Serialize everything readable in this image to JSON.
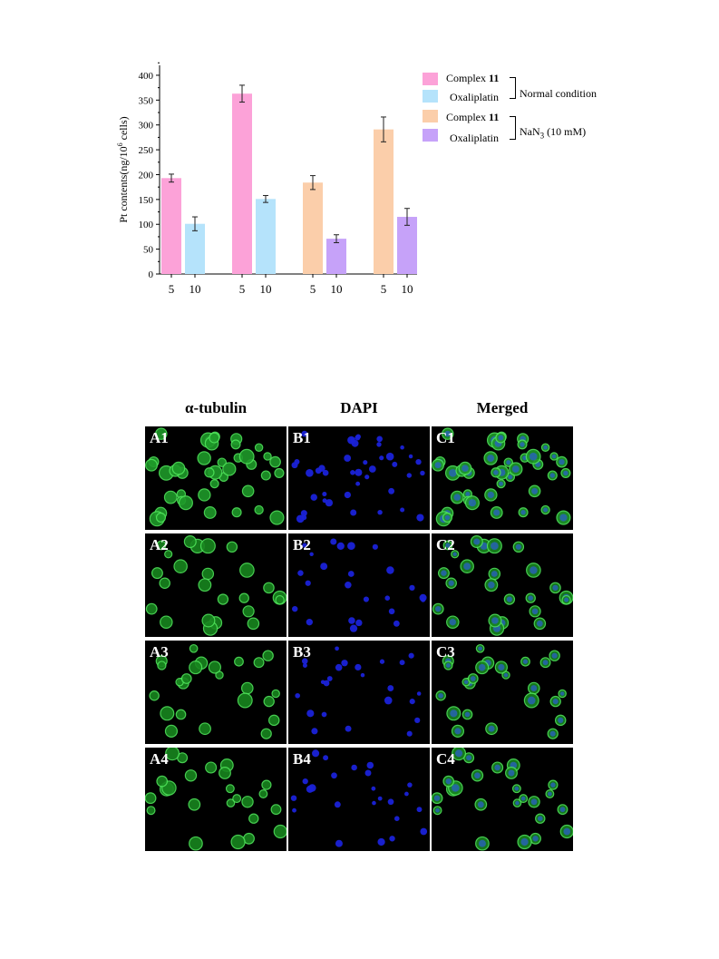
{
  "chart_data": {
    "type": "bar",
    "ylabel_prefix": "Pt contents(ng/10",
    "ylabel_sup": "6",
    "ylabel_suffix": " cells)",
    "ylim": [
      0,
      420
    ],
    "yticks": [
      "0",
      "50",
      "100",
      "150",
      "200",
      "250",
      "300",
      "350",
      "400"
    ],
    "groups": [
      {
        "bars": [
          {
            "x": "5",
            "series": 0,
            "value": 193,
            "error": 8
          },
          {
            "x": "10",
            "series": 1,
            "value": 101,
            "error": 14
          }
        ]
      },
      {
        "bars": [
          {
            "x": "5",
            "series": 0,
            "value": 363,
            "error": 17
          },
          {
            "x": "10",
            "series": 1,
            "value": 151,
            "error": 7
          }
        ]
      },
      {
        "bars": [
          {
            "x": "5",
            "series": 2,
            "value": 184,
            "error": 14
          },
          {
            "x": "10",
            "series": 3,
            "value": 71,
            "error": 8
          }
        ]
      },
      {
        "bars": [
          {
            "x": "5",
            "series": 2,
            "value": 291,
            "error": 25
          },
          {
            "x": "10",
            "series": 3,
            "value": 115,
            "error": 17
          }
        ]
      }
    ],
    "series": [
      {
        "name_text": "Complex ",
        "name_bold": "11",
        "color": "#fca2d8"
      },
      {
        "name_text": "Oxaliplatin",
        "name_bold": "",
        "color": "#b5e3fb"
      },
      {
        "name_text": "Complex ",
        "name_bold": "11",
        "color": "#fbceaa"
      },
      {
        "name_text": "Oxaliplatin",
        "name_bold": "",
        "color": "#c6a2f9"
      }
    ],
    "legend_groups": [
      {
        "label": "Normal condition"
      },
      {
        "label_prefix": "NaN",
        "label_sub": "3",
        "label_suffix": " (10 mM)"
      }
    ]
  },
  "micrographs": {
    "columns": [
      "α-tubulin",
      "DAPI",
      "Merged"
    ],
    "rows": [
      [
        "A1",
        "B1",
        "C1"
      ],
      [
        "A2",
        "B2",
        "C2"
      ],
      [
        "A3",
        "B3",
        "C3"
      ],
      [
        "A4",
        "B4",
        "C4"
      ]
    ]
  }
}
